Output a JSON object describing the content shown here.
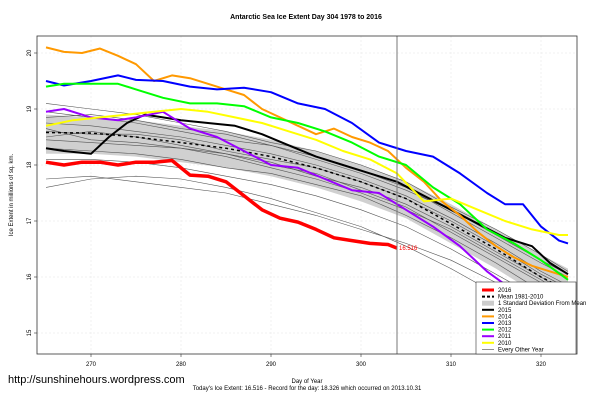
{
  "chart_data": {
    "type": "line",
    "title": "Antarctic Sea Ice Extent Day 304 1978 to 2016",
    "xlabel": "Day of Year",
    "ylabel": "Ice Extent in millions of sq. km.",
    "xlim": [
      264,
      324
    ],
    "ylim": [
      14.5,
      20.3
    ],
    "xticks": [
      270,
      280,
      290,
      300,
      310,
      320
    ],
    "yticks": [
      15,
      16,
      17,
      18,
      19,
      20
    ],
    "grid": true,
    "marker_day": 304,
    "current_value_label": "16.516",
    "legend_position": "bottom-right",
    "legend": [
      "2016",
      "Mean 1981-2010",
      "1 Standard Deviation From Mean",
      "2015",
      "2014",
      "2013",
      "2012",
      "2011",
      "2010",
      "Every Other Year"
    ],
    "band": {
      "name": "1 Standard Deviation From Mean",
      "x": [
        265,
        270,
        275,
        280,
        285,
        290,
        295,
        300,
        305,
        310,
        315,
        320,
        323
      ],
      "upper": [
        18.9,
        18.85,
        18.8,
        18.7,
        18.6,
        18.45,
        18.25,
        18.0,
        17.7,
        17.3,
        16.85,
        16.4,
        16.15
      ],
      "lower": [
        18.2,
        18.2,
        18.15,
        18.05,
        17.95,
        17.8,
        17.6,
        17.35,
        17.05,
        16.6,
        16.15,
        15.65,
        15.4
      ]
    },
    "series": [
      {
        "name": "Mean 1981-2010",
        "color": "#000000",
        "style": "dash",
        "x": [
          265,
          270,
          275,
          280,
          285,
          290,
          295,
          300,
          305,
          310,
          315,
          320,
          323
        ],
        "y": [
          18.58,
          18.57,
          18.5,
          18.4,
          18.3,
          18.15,
          17.95,
          17.7,
          17.4,
          16.95,
          16.5,
          16.0,
          15.75
        ]
      },
      {
        "name": "2015",
        "color": "#000000",
        "style": "bold",
        "x": [
          265,
          267,
          270,
          272,
          274,
          276,
          278,
          280,
          283,
          286,
          289,
          292,
          295,
          298,
          301,
          304,
          307,
          310,
          313,
          316,
          319,
          321,
          323
        ],
        "y": [
          18.3,
          18.25,
          18.2,
          18.5,
          18.75,
          18.9,
          18.85,
          18.8,
          18.75,
          18.7,
          18.55,
          18.35,
          18.15,
          18.0,
          17.85,
          17.7,
          17.45,
          17.2,
          16.95,
          16.7,
          16.55,
          16.25,
          16.05
        ]
      },
      {
        "name": "2014",
        "color": "#FF9900",
        "style": "bold",
        "x": [
          265,
          267,
          269,
          271,
          273,
          275,
          277,
          279,
          281,
          283,
          285,
          287,
          289,
          291,
          293,
          295,
          297,
          299,
          301,
          303,
          305,
          307,
          309,
          311,
          313,
          315,
          317,
          319,
          321,
          323
        ],
        "y": [
          20.1,
          20.02,
          20.0,
          20.08,
          19.95,
          19.8,
          19.5,
          19.6,
          19.55,
          19.45,
          19.35,
          19.25,
          19.0,
          18.85,
          18.7,
          18.55,
          18.65,
          18.5,
          18.4,
          18.25,
          17.95,
          17.7,
          17.35,
          17.1,
          16.8,
          16.55,
          16.35,
          16.2,
          16.1,
          16.0
        ]
      },
      {
        "name": "2013",
        "color": "#0000FF",
        "style": "bold",
        "x": [
          265,
          267,
          270,
          273,
          275,
          278,
          281,
          284,
          287,
          290,
          293,
          296,
          299,
          302,
          305,
          308,
          311,
          314,
          316,
          318,
          320,
          322,
          323
        ],
        "y": [
          19.5,
          19.42,
          19.5,
          19.6,
          19.52,
          19.5,
          19.4,
          19.35,
          19.38,
          19.3,
          19.1,
          19.0,
          18.75,
          18.4,
          18.25,
          18.15,
          17.85,
          17.5,
          17.3,
          17.3,
          16.9,
          16.65,
          16.6
        ]
      },
      {
        "name": "2012",
        "color": "#00FF00",
        "style": "bold",
        "x": [
          265,
          267,
          270,
          273,
          275,
          278,
          281,
          284,
          287,
          290,
          293,
          296,
          299,
          302,
          305,
          308,
          311,
          314,
          317,
          320,
          323
        ],
        "y": [
          19.4,
          19.45,
          19.45,
          19.45,
          19.35,
          19.2,
          19.1,
          19.1,
          19.05,
          18.85,
          18.75,
          18.6,
          18.4,
          18.15,
          18.0,
          17.6,
          17.3,
          16.85,
          16.6,
          16.3,
          15.95
        ]
      },
      {
        "name": "2011",
        "color": "#9900FF",
        "style": "bold",
        "x": [
          265,
          267,
          270,
          273,
          275,
          278,
          281,
          284,
          287,
          290,
          293,
          296,
          299,
          302,
          305,
          308,
          311,
          314,
          317,
          320,
          323
        ],
        "y": [
          18.95,
          19.0,
          18.85,
          18.8,
          18.85,
          18.95,
          18.65,
          18.5,
          18.25,
          18.0,
          17.95,
          17.75,
          17.55,
          17.5,
          17.2,
          16.9,
          16.55,
          16.1,
          15.75,
          15.5,
          15.25
        ]
      },
      {
        "name": "2010",
        "color": "#FFFF00",
        "style": "bold",
        "x": [
          265,
          268,
          271,
          274,
          277,
          280,
          283,
          286,
          289,
          292,
          295,
          298,
          301,
          304,
          307,
          310,
          313,
          316,
          319,
          322,
          323
        ],
        "y": [
          18.7,
          18.8,
          18.85,
          18.9,
          18.95,
          19.0,
          18.95,
          18.85,
          18.75,
          18.6,
          18.45,
          18.25,
          18.1,
          17.85,
          17.35,
          17.4,
          17.2,
          17.0,
          16.85,
          16.75,
          16.75
        ]
      },
      {
        "name": "2016",
        "color": "#FF0000",
        "style": "thick",
        "x": [
          265,
          267,
          269,
          271,
          273,
          275,
          277,
          279,
          281,
          283,
          285,
          287,
          289,
          291,
          293,
          295,
          297,
          299,
          301,
          303,
          304
        ],
        "y": [
          18.05,
          18.0,
          18.05,
          18.05,
          18.0,
          18.05,
          18.05,
          18.08,
          17.82,
          17.8,
          17.7,
          17.45,
          17.2,
          17.05,
          16.98,
          16.85,
          16.7,
          16.65,
          16.6,
          16.58,
          16.516
        ]
      }
    ],
    "other_years": [
      [
        18.95,
        18.85,
        18.75,
        18.6,
        18.45,
        18.35,
        18.15,
        17.9,
        17.6,
        17.15,
        16.7,
        16.25,
        16.0
      ],
      [
        18.75,
        18.7,
        18.6,
        18.5,
        18.35,
        18.2,
        18.0,
        17.75,
        17.45,
        17.05,
        16.6,
        16.1,
        15.85
      ],
      [
        18.6,
        18.55,
        18.55,
        18.45,
        18.25,
        18.1,
        17.95,
        17.7,
        17.4,
        17.0,
        16.55,
        16.05,
        15.8
      ],
      [
        18.45,
        18.4,
        18.35,
        18.3,
        18.2,
        18.0,
        17.85,
        17.55,
        17.25,
        16.8,
        16.35,
        15.9,
        15.6
      ],
      [
        18.3,
        18.25,
        18.2,
        18.1,
        17.95,
        17.85,
        17.65,
        17.45,
        17.1,
        16.7,
        16.25,
        15.75,
        15.5
      ],
      [
        19.1,
        19.0,
        18.9,
        18.75,
        18.6,
        18.4,
        18.25,
        18.0,
        17.7,
        17.25,
        16.85,
        16.4,
        16.1
      ],
      [
        18.85,
        18.9,
        18.8,
        18.65,
        18.55,
        18.35,
        18.1,
        17.85,
        17.55,
        17.2,
        16.75,
        16.3,
        16.05
      ],
      [
        18.1,
        18.1,
        18.05,
        17.95,
        17.8,
        17.65,
        17.45,
        17.2,
        16.9,
        16.5,
        16.05,
        15.6,
        15.35
      ],
      [
        17.75,
        17.8,
        17.7,
        17.6,
        17.5,
        17.3,
        17.1,
        16.85,
        16.6,
        16.3,
        15.9,
        15.45,
        15.2
      ],
      [
        17.6,
        17.75,
        17.8,
        17.75,
        17.6,
        17.4,
        17.15,
        16.9,
        16.55,
        16.15,
        15.7,
        15.25,
        15.0
      ],
      [
        18.5,
        18.6,
        18.5,
        18.35,
        18.2,
        18.05,
        17.8,
        17.6,
        17.3,
        16.9,
        16.45,
        16.0,
        15.7
      ],
      [
        18.65,
        18.45,
        18.4,
        18.3,
        18.15,
        17.95,
        17.75,
        17.5,
        17.2,
        16.85,
        16.4,
        15.95,
        15.65
      ]
    ],
    "other_years_x": [
      265,
      270,
      275,
      280,
      285,
      290,
      295,
      300,
      305,
      310,
      315,
      320,
      323
    ]
  },
  "footer": {
    "url": "http://sunshinehours.wordpress.com",
    "summary": "Today's Ice Extent: 16.516  - Record for the day: 18.326 which occurred on 2013.10.31"
  }
}
